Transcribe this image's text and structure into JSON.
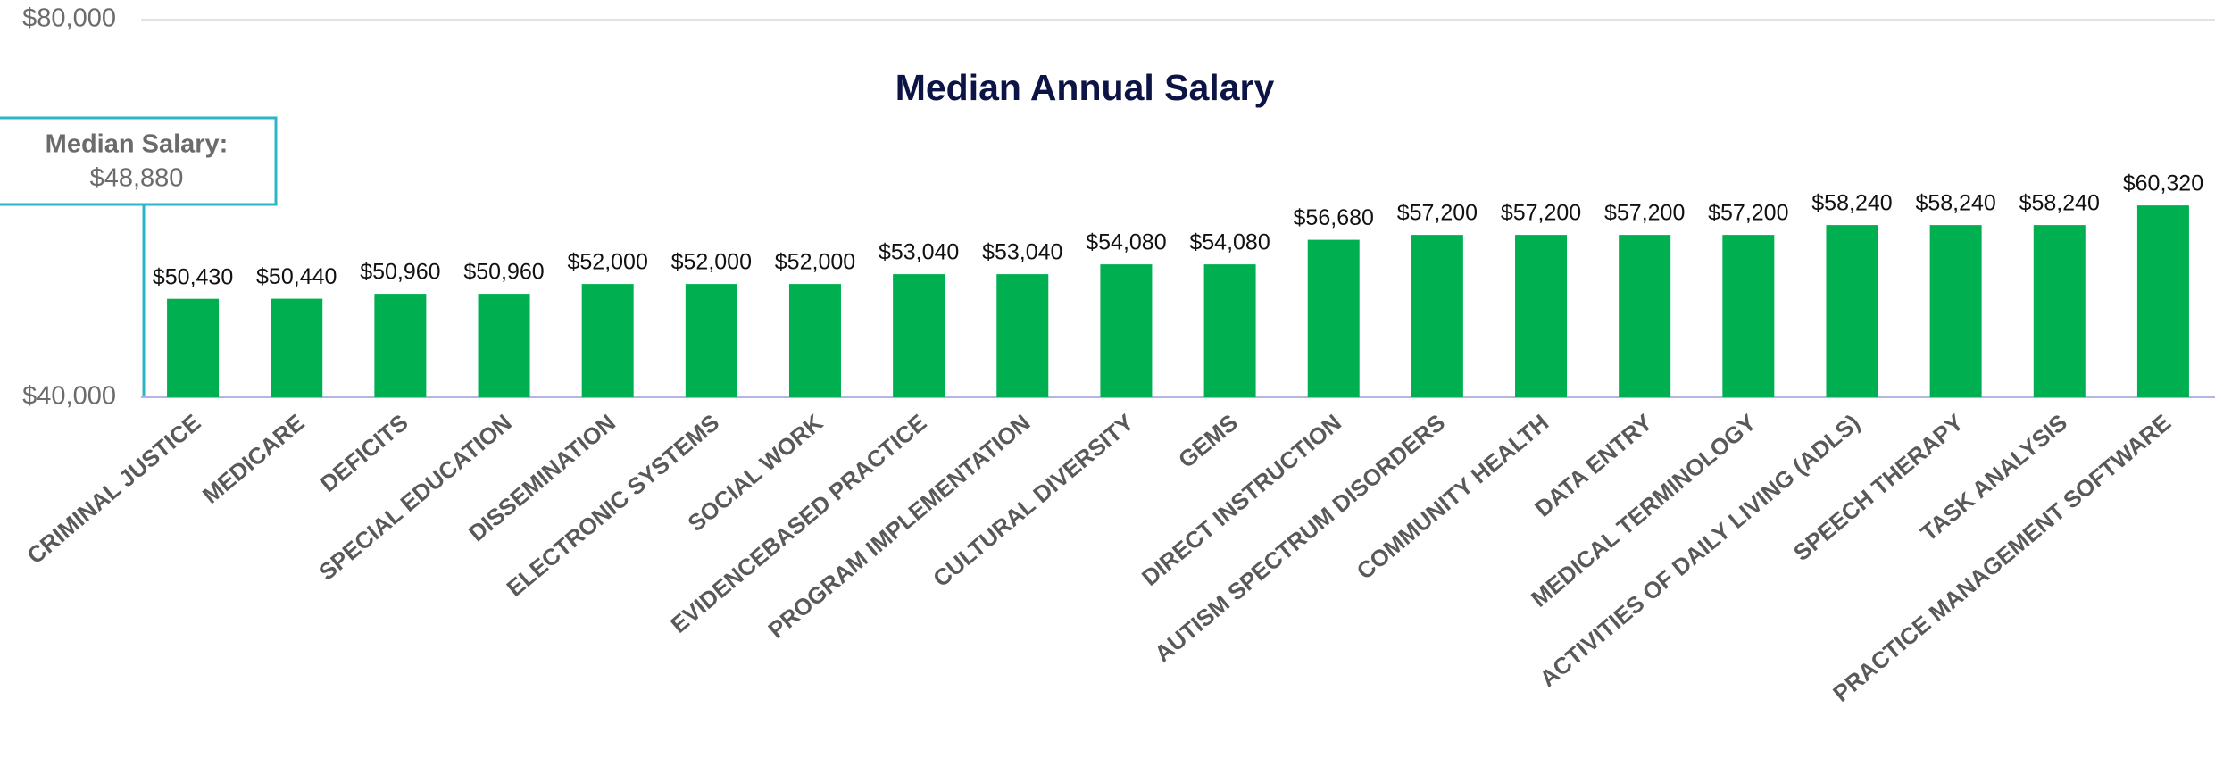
{
  "chart_data": {
    "type": "bar",
    "title": "Median Annual Salary",
    "categories": [
      "CRIMINAL JUSTICE",
      "MEDICARE",
      "DEFICITS",
      "SPECIAL EDUCATION",
      "DISSEMINATION",
      "ELECTRONIC SYSTEMS",
      "SOCIAL WORK",
      "EVIDENCEBASED PRACTICE",
      "PROGRAM IMPLEMENTATION",
      "CULTURAL DIVERSITY",
      "GEMS",
      "DIRECT INSTRUCTION",
      "AUTISM SPECTRUM DISORDERS",
      "COMMUNITY HEALTH",
      "DATA ENTRY",
      "MEDICAL TERMINOLOGY",
      "ACTIVITIES OF DAILY LIVING (ADLS)",
      "SPEECH THERAPY",
      "TASK ANALYSIS",
      "PRACTICE MANAGEMENT SOFTWARE"
    ],
    "values": [
      50430,
      50440,
      50960,
      50960,
      52000,
      52000,
      52000,
      53040,
      53040,
      54080,
      54080,
      56680,
      57200,
      57200,
      57200,
      57200,
      58240,
      58240,
      58240,
      60320
    ],
    "value_labels": [
      "$50,430",
      "$50,440",
      "$50,960",
      "$50,960",
      "$52,000",
      "$52,000",
      "$52,000",
      "$53,040",
      "$53,040",
      "$54,080",
      "$54,080",
      "$56,680",
      "$57,200",
      "$57,200",
      "$57,200",
      "$57,200",
      "$58,240",
      "$58,240",
      "$58,240",
      "$60,320"
    ],
    "color": "#00b050",
    "ylim": [
      40000,
      80000
    ],
    "yticks": [
      {
        "value": 40000,
        "label": "$40,000"
      },
      {
        "value": 80000,
        "label": "$80,000"
      }
    ],
    "grid": true,
    "annotation": {
      "title": "Median Salary:",
      "value": 48880,
      "label": "$48,880"
    }
  }
}
